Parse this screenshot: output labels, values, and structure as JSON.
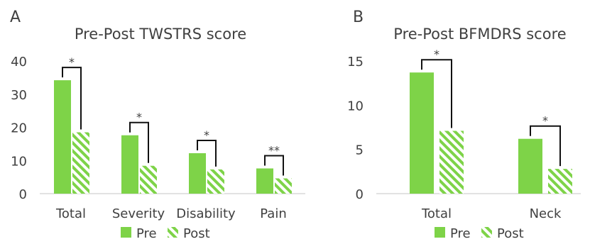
{
  "colors": {
    "pre": "#7ed348",
    "post_stripe": "#7ed348",
    "axis": "#d0d0d0",
    "text": "#404040",
    "bracket": "#111111"
  },
  "legend": {
    "pre": "Pre",
    "post": "Post"
  },
  "chart_data": [
    {
      "panel_label": "A",
      "type": "bar",
      "title": "Pre-Post TWSTRS score",
      "categories": [
        "Total",
        "Severity",
        "Disability",
        "Pain"
      ],
      "series": [
        {
          "name": "Pre",
          "values": [
            34.2,
            17.6,
            12.2,
            7.6
          ]
        },
        {
          "name": "Post",
          "values": [
            18.5,
            8.4,
            7.3,
            4.6
          ]
        }
      ],
      "ylim": [
        0,
        40
      ],
      "yticks": [
        0,
        10,
        20,
        30,
        40
      ],
      "significance": [
        "*",
        "*",
        "*",
        "**"
      ],
      "legend_position": "bottom",
      "grid": false
    },
    {
      "panel_label": "B",
      "type": "bar",
      "title": "Pre-Post BFMDRS score",
      "categories": [
        "Total",
        "Neck"
      ],
      "series": [
        {
          "name": "Pre",
          "values": [
            13.7,
            6.2
          ]
        },
        {
          "name": "Post",
          "values": [
            7.1,
            2.8
          ]
        }
      ],
      "ylim": [
        0,
        15
      ],
      "yticks": [
        0,
        5,
        10,
        15
      ],
      "significance": [
        "*",
        "*"
      ],
      "legend_position": "bottom",
      "grid": false
    }
  ]
}
